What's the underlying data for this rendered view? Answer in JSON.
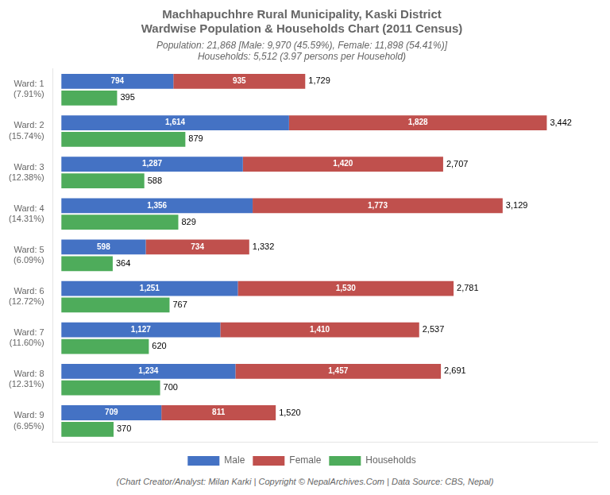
{
  "chart_data": {
    "type": "bar",
    "orientation": "horizontal",
    "title": [
      "Machhapuchhre Rural Municipality, Kaski District",
      "Wardwise Population & Households Chart (2011 Census)"
    ],
    "subtitle": [
      "Population: 21,868 [Male: 9,970 (45.59%), Female: 11,898 (54.41%)]",
      "Households: 5,512 (3.97 persons per Household)"
    ],
    "annotations": [
      "(Chart Creator/Analyst: Milan Karki | Copyright © NepalArchives.Com | Data Source: CBS, Nepal)"
    ],
    "categories": [
      "Ward: 1\n(7.91%)",
      "Ward: 2\n(15.74%)",
      "Ward: 3\n(12.38%)",
      "Ward: 4\n(14.31%)",
      "Ward: 5\n(6.09%)",
      "Ward: 6\n(12.72%)",
      "Ward: 7\n(11.60%)",
      "Ward: 8\n(12.31%)",
      "Ward: 9\n(6.95%)"
    ],
    "series": [
      {
        "name": "Male",
        "color": "#4472C4",
        "stacked": true,
        "values": [
          794,
          1614,
          1287,
          1356,
          598,
          1251,
          1127,
          1234,
          709
        ],
        "value_labels": [
          "794",
          "1,614",
          "1,287",
          "1,356",
          "598",
          "1,251",
          "1,127",
          "1,234",
          "709"
        ]
      },
      {
        "name": "Female",
        "color": "#C0504D",
        "stacked": true,
        "values": [
          935,
          1828,
          1420,
          1773,
          734,
          1530,
          1410,
          1457,
          811
        ],
        "value_labels": [
          "935",
          "1,828",
          "1,420",
          "1,773",
          "734",
          "1,530",
          "1,410",
          "1,457",
          "811"
        ]
      },
      {
        "name": "Households",
        "color": "#4EAC5B",
        "stacked": false,
        "values": [
          395,
          879,
          588,
          829,
          364,
          767,
          620,
          700,
          370
        ]
      }
    ],
    "totals": [
      1729,
      3442,
      2707,
      3129,
      1332,
      2781,
      2537,
      2691,
      1520
    ],
    "total_labels": [
      "1,729",
      "3,442",
      "2,707",
      "3,129",
      "1,332",
      "2,781",
      "2,537",
      "2,691",
      "1,520"
    ],
    "xlim": [
      -60,
      3800
    ],
    "grid": false,
    "legend": "bottom",
    "data_labels": true,
    "tick_labels": "y"
  }
}
